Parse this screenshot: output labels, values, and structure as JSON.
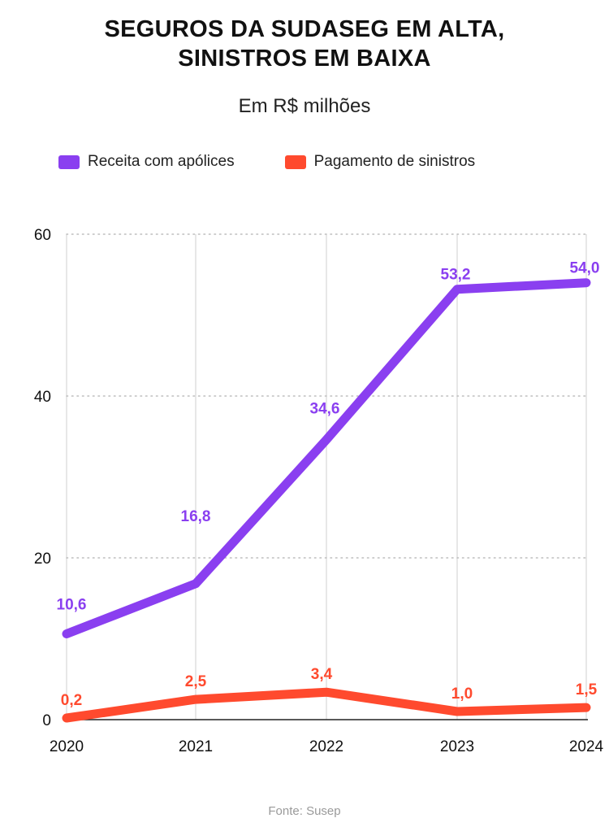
{
  "title_line1": "SEGUROS DA SUDASEG EM ALTA,",
  "title_line2": "SINISTROS EM BAIXA",
  "subtitle": "Em R$ milhões",
  "source": "Fonte: Susep",
  "colors": {
    "receita": "#8a3ff0",
    "sinistros": "#ff4a2e",
    "grid": "#cfcfcf"
  },
  "chart_data": {
    "type": "line",
    "x": [
      "2020",
      "2021",
      "2022",
      "2023",
      "2024"
    ],
    "ylim": [
      0,
      60
    ],
    "yticks": [
      0,
      20,
      40,
      60
    ],
    "grid": true,
    "legend_position": "top-left",
    "series": [
      {
        "name": "Receita com apólices",
        "values": [
          10.6,
          16.8,
          34.6,
          53.2,
          54.0
        ],
        "labels": [
          "10,6",
          "16,8",
          "34,6",
          "53,2",
          "54,0"
        ]
      },
      {
        "name": "Pagamento de sinistros",
        "values": [
          0.2,
          2.5,
          3.4,
          1.0,
          1.5
        ],
        "labels": [
          "0,2",
          "2,5",
          "3,4",
          "1,0",
          "1,5"
        ]
      }
    ]
  }
}
